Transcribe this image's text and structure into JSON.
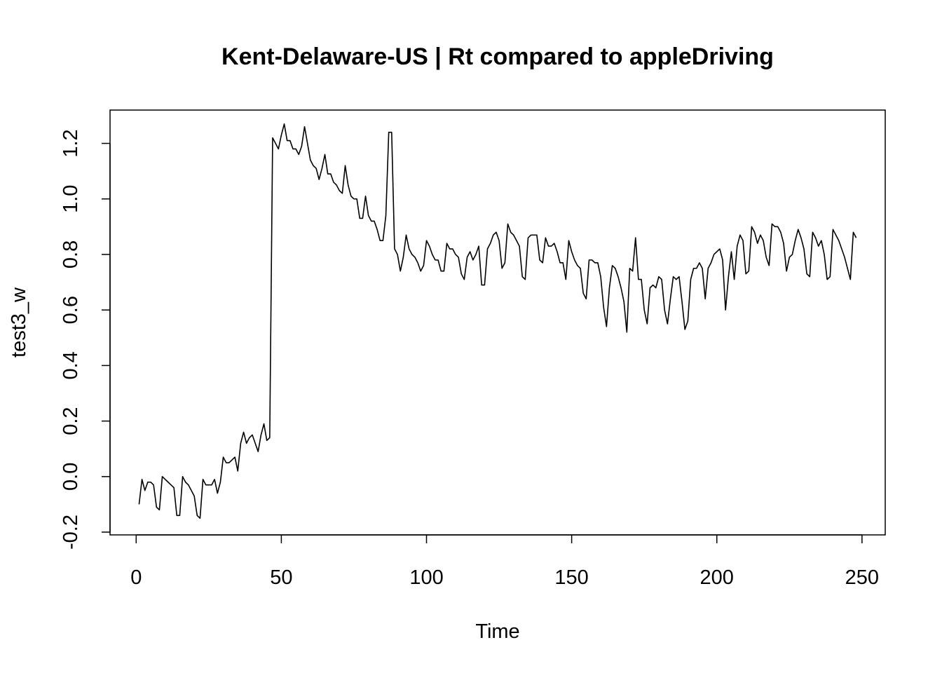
{
  "chart_data": {
    "type": "line",
    "title": "Kent-Delaware-US | Rt compared to appleDriving",
    "xlabel": "Time",
    "ylabel": "test3_w",
    "xlim": [
      -9,
      258
    ],
    "ylim": [
      -0.21,
      1.32
    ],
    "x_ticks": [
      0,
      50,
      100,
      150,
      200,
      250
    ],
    "y_ticks": [
      -0.2,
      0.0,
      0.2,
      0.4,
      0.6,
      0.8,
      1.0,
      1.2
    ],
    "x_tick_labels": [
      "0",
      "50",
      "100",
      "150",
      "200",
      "250"
    ],
    "y_tick_labels": [
      "-0.2",
      "0.0",
      "0.2",
      "0.4",
      "0.6",
      "0.8",
      "1.0",
      "1.2"
    ],
    "grid": false,
    "series": [
      {
        "x_start": 1,
        "values": [
          -0.1,
          -0.01,
          -0.05,
          -0.02,
          -0.02,
          -0.03,
          -0.11,
          -0.12,
          0.0,
          -0.01,
          -0.02,
          -0.03,
          -0.04,
          -0.14,
          -0.14,
          0.0,
          -0.02,
          -0.03,
          -0.05,
          -0.07,
          -0.14,
          -0.15,
          -0.01,
          -0.03,
          -0.03,
          -0.03,
          -0.01,
          -0.06,
          -0.02,
          0.07,
          0.05,
          0.05,
          0.06,
          0.07,
          0.02,
          0.12,
          0.16,
          0.12,
          0.14,
          0.15,
          0.12,
          0.09,
          0.15,
          0.19,
          0.13,
          0.14,
          1.22,
          1.2,
          1.18,
          1.23,
          1.27,
          1.21,
          1.21,
          1.18,
          1.18,
          1.16,
          1.19,
          1.26,
          1.2,
          1.14,
          1.12,
          1.11,
          1.07,
          1.11,
          1.16,
          1.09,
          1.09,
          1.06,
          1.05,
          1.03,
          1.02,
          1.12,
          1.05,
          1.01,
          1.0,
          1.0,
          0.93,
          0.93,
          1.01,
          0.94,
          0.92,
          0.92,
          0.89,
          0.85,
          0.85,
          0.94,
          1.24,
          1.24,
          0.82,
          0.8,
          0.74,
          0.79,
          0.87,
          0.82,
          0.8,
          0.79,
          0.77,
          0.74,
          0.76,
          0.85,
          0.83,
          0.8,
          0.78,
          0.78,
          0.74,
          0.74,
          0.84,
          0.82,
          0.82,
          0.8,
          0.79,
          0.73,
          0.71,
          0.79,
          0.81,
          0.78,
          0.8,
          0.83,
          0.69,
          0.69,
          0.82,
          0.84,
          0.87,
          0.88,
          0.85,
          0.75,
          0.77,
          0.91,
          0.88,
          0.87,
          0.85,
          0.83,
          0.72,
          0.71,
          0.86,
          0.87,
          0.87,
          0.87,
          0.78,
          0.77,
          0.86,
          0.83,
          0.83,
          0.84,
          0.81,
          0.77,
          0.77,
          0.71,
          0.85,
          0.81,
          0.78,
          0.76,
          0.75,
          0.66,
          0.64,
          0.78,
          0.78,
          0.77,
          0.77,
          0.72,
          0.61,
          0.54,
          0.68,
          0.76,
          0.75,
          0.72,
          0.68,
          0.63,
          0.52,
          0.75,
          0.74,
          0.86,
          0.71,
          0.71,
          0.6,
          0.55,
          0.68,
          0.69,
          0.68,
          0.72,
          0.71,
          0.6,
          0.55,
          0.64,
          0.72,
          0.71,
          0.72,
          0.63,
          0.53,
          0.56,
          0.71,
          0.75,
          0.75,
          0.77,
          0.75,
          0.64,
          0.75,
          0.77,
          0.8,
          0.81,
          0.82,
          0.78,
          0.6,
          0.72,
          0.81,
          0.71,
          0.83,
          0.87,
          0.85,
          0.73,
          0.74,
          0.9,
          0.88,
          0.84,
          0.87,
          0.85,
          0.79,
          0.76,
          0.91,
          0.9,
          0.9,
          0.88,
          0.84,
          0.74,
          0.79,
          0.8,
          0.85,
          0.89,
          0.86,
          0.82,
          0.73,
          0.72,
          0.88,
          0.86,
          0.83,
          0.85,
          0.8,
          0.71,
          0.72,
          0.89,
          0.87,
          0.85,
          0.82,
          0.79,
          0.75,
          0.71,
          0.88,
          0.86
        ]
      }
    ]
  }
}
